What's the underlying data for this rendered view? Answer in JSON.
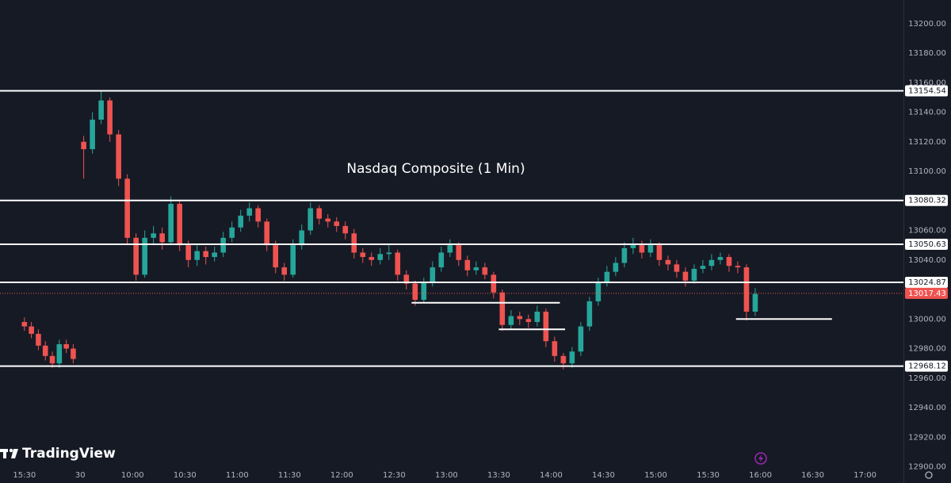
{
  "chart_data": {
    "type": "candlestick",
    "title": "Nasdaq Composite (1 Min)",
    "brand": "TradingView",
    "up_color": "#26a69a",
    "down_color": "#ef5350",
    "x": [
      0,
      4,
      8,
      12,
      16,
      20,
      24,
      28,
      34,
      39,
      44,
      49,
      54,
      59,
      64,
      69,
      74,
      79,
      84,
      89,
      94,
      99,
      104,
      109,
      114,
      119,
      124,
      129,
      134,
      139,
      144,
      149,
      154,
      159,
      164,
      169,
      174,
      179,
      184,
      189,
      194,
      199,
      204,
      209,
      214,
      219,
      224,
      229,
      234,
      239,
      244,
      249,
      254,
      259,
      264,
      269,
      274,
      279,
      284,
      289,
      294,
      299,
      304,
      309,
      314,
      319,
      324,
      329,
      334,
      339,
      344,
      349,
      354,
      359,
      364,
      369,
      374,
      379,
      384,
      389,
      394,
      399,
      404,
      409,
      414,
      419
    ],
    "open": [
      12998,
      12995,
      12990,
      12982,
      12975,
      12970,
      12983,
      12980,
      13120,
      13115,
      13135,
      13148,
      13125,
      13095,
      13055,
      13030,
      13055,
      13058,
      13052,
      13078,
      13050,
      13040,
      13046,
      13042,
      13045,
      13055,
      13062,
      13070,
      13075,
      13066,
      13050,
      13035,
      13030,
      13050,
      13060,
      13075,
      13068,
      13066,
      13063,
      13058,
      13045,
      13042,
      13040,
      13044,
      13045,
      13030,
      13024,
      13013,
      13025,
      13035,
      13045,
      13050,
      13040,
      13033,
      13035,
      13030,
      13018,
      12996,
      13002,
      13000,
      12998,
      13005,
      12985,
      12975,
      12970,
      12978,
      12995,
      13012,
      13025,
      13032,
      13038,
      13048,
      13050,
      13045,
      13050,
      13040,
      13037,
      13032,
      13026,
      13034,
      13036,
      13040,
      13042,
      13036,
      13035,
      13005
    ],
    "high": [
      13001,
      12998,
      12993,
      12985,
      12978,
      12986,
      12986,
      12983,
      13124,
      13140,
      13155,
      13150,
      13128,
      13098,
      13058,
      13060,
      13063,
      13062,
      13083,
      13080,
      13053,
      13050,
      13049,
      13049,
      13059,
      13066,
      13074,
      13079,
      13077,
      13068,
      13053,
      13038,
      13054,
      13064,
      13079,
      13077,
      13071,
      13069,
      13066,
      13061,
      13048,
      13045,
      13048,
      13050,
      13047,
      13033,
      13026,
      13028,
      13039,
      13049,
      13054,
      13052,
      13043,
      13039,
      13038,
      13032,
      13020,
      13006,
      13005,
      13003,
      13009,
      13007,
      12988,
      12977,
      12981,
      12998,
      13015,
      13028,
      13036,
      13042,
      13052,
      13055,
      13053,
      13054,
      13052,
      13043,
      13040,
      13035,
      13037,
      13040,
      13044,
      13045,
      13044,
      13039,
      13037,
      13021
    ],
    "low": [
      12992,
      12987,
      12979,
      12972,
      12967,
      12967,
      12977,
      12970,
      13095,
      13112,
      13132,
      13120,
      13090,
      13050,
      13026,
      13028,
      13050,
      13047,
      13050,
      13046,
      13035,
      13036,
      13037,
      13039,
      13042,
      13052,
      13059,
      13066,
      13062,
      13046,
      13031,
      13026,
      13028,
      13047,
      13057,
      13064,
      13062,
      13059,
      13054,
      13041,
      13038,
      13036,
      13037,
      13040,
      13026,
      13020,
      13009,
      13011,
      13022,
      13032,
      13042,
      13036,
      13029,
      13030,
      13027,
      13014,
      12992,
      12993,
      12996,
      12994,
      12995,
      12981,
      12971,
      12966,
      12967,
      12975,
      12992,
      13009,
      13022,
      13029,
      13035,
      13044,
      13041,
      13042,
      13036,
      13033,
      13028,
      13022,
      13024,
      13031,
      13033,
      13037,
      13032,
      13031,
      12999,
      13002
    ],
    "close": [
      12995,
      12990,
      12982,
      12975,
      12970,
      12983,
      12980,
      12973,
      13115,
      13135,
      13148,
      13125,
      13095,
      13055,
      13030,
      13055,
      13058,
      13052,
      13078,
      13050,
      13040,
      13046,
      13042,
      13045,
      13055,
      13062,
      13070,
      13075,
      13066,
      13050,
      13035,
      13030,
      13050,
      13060,
      13075,
      13068,
      13066,
      13063,
      13058,
      13045,
      13042,
      13040,
      13044,
      13045,
      13030,
      13024,
      13013,
      13025,
      13035,
      13045,
      13050,
      13040,
      13033,
      13035,
      13030,
      13018,
      12996,
      13002,
      13000,
      12998,
      13005,
      12985,
      12975,
      12970,
      12978,
      12995,
      13012,
      13025,
      13032,
      13038,
      13048,
      13050,
      13045,
      13050,
      13040,
      13037,
      13032,
      13026,
      13034,
      13036,
      13040,
      13042,
      13036,
      13035,
      13005,
      13017
    ],
    "levels": [
      13154.54,
      13080.32,
      13050.63,
      13024.87,
      12968.12
    ],
    "last_price": 13017.43,
    "segments": [
      {
        "y": 13011,
        "x": [
          222,
          307
        ]
      },
      {
        "y": 12993,
        "x": [
          272,
          310
        ]
      },
      {
        "y": 13000,
        "x": [
          408,
          463
        ]
      }
    ],
    "xlim": [
      -14,
      504
    ],
    "xticks": [
      {
        "value": 0,
        "label": "15:30"
      },
      {
        "value": 32,
        "label": "30"
      },
      {
        "value": 62,
        "label": "10:00"
      },
      {
        "value": 92,
        "label": "10:30"
      },
      {
        "value": 122,
        "label": "11:00"
      },
      {
        "value": 152,
        "label": "11:30"
      },
      {
        "value": 182,
        "label": "12:00"
      },
      {
        "value": 212,
        "label": "12:30"
      },
      {
        "value": 242,
        "label": "13:00"
      },
      {
        "value": 272,
        "label": "13:30"
      },
      {
        "value": 302,
        "label": "14:00"
      },
      {
        "value": 332,
        "label": "14:30"
      },
      {
        "value": 362,
        "label": "15:00"
      },
      {
        "value": 392,
        "label": "15:30"
      },
      {
        "value": 422,
        "label": "16:00"
      },
      {
        "value": 452,
        "label": "16:30"
      },
      {
        "value": 482,
        "label": "17:00"
      }
    ],
    "ylim": [
      12889,
      13216
    ],
    "yticks": [
      {
        "value": 12900,
        "label": "12900.00"
      },
      {
        "value": 12920,
        "label": "12920.00"
      },
      {
        "value": 12940,
        "label": "12940.00"
      },
      {
        "value": 12960,
        "label": "12960.00"
      },
      {
        "value": 12980,
        "label": "12980.00"
      },
      {
        "value": 13000,
        "label": "13000.00"
      },
      {
        "value": 13020,
        "label": "13020.00"
      },
      {
        "value": 13040,
        "label": "13040.00"
      },
      {
        "value": 13060,
        "label": "13060.00"
      },
      {
        "value": 13080,
        "label": "13080.00"
      },
      {
        "value": 13100,
        "label": "13100.00"
      },
      {
        "value": 13120,
        "label": "13120.00"
      },
      {
        "value": 13140,
        "label": "13140.00"
      },
      {
        "value": 13160,
        "label": "13160.00"
      },
      {
        "value": 13180,
        "label": "13180.00"
      },
      {
        "value": 13200,
        "label": "13200.00"
      }
    ],
    "grid": false
  }
}
